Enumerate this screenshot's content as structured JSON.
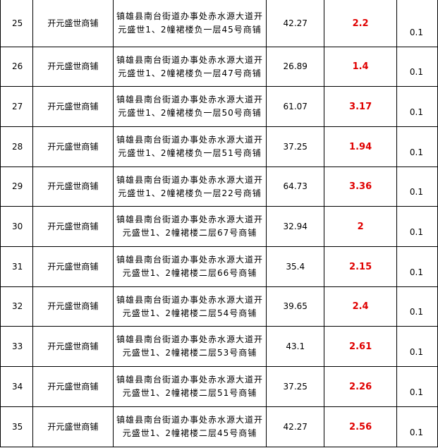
{
  "rows": [
    {
      "no": "25",
      "name": "开元盛世商铺",
      "address": "镇雄县南台街道办事处赤水源大道开元盛世1、2幢裙楼负一层45号商铺",
      "area": "42.27",
      "value": "2.2",
      "rate": "0.1"
    },
    {
      "no": "26",
      "name": "开元盛世商铺",
      "address": "镇雄县南台街道办事处赤水源大道开元盛世1、2幢裙楼负一层47号商铺",
      "area": "26.89",
      "value": "1.4",
      "rate": "0.1"
    },
    {
      "no": "27",
      "name": "开元盛世商铺",
      "address": "镇雄县南台街道办事处赤水源大道开元盛世1、2幢裙楼负一层50号商铺",
      "area": "61.07",
      "value": "3.17",
      "rate": "0.1"
    },
    {
      "no": "28",
      "name": "开元盛世商铺",
      "address": "镇雄县南台街道办事处赤水源大道开元盛世1、2幢裙楼负一层51号商铺",
      "area": "37.25",
      "value": "1.94",
      "rate": "0.1"
    },
    {
      "no": "29",
      "name": "开元盛世商铺",
      "address": "镇雄县南台街道办事处赤水源大道开元盛世1、2幢裙楼负一层22号商铺",
      "area": "64.73",
      "value": "3.36",
      "rate": "0.1"
    },
    {
      "no": "30",
      "name": "开元盛世商铺",
      "address": "镇雄县南台街道办事处赤水源大道开元盛世1、2幢裙楼二层67号商铺",
      "area": "32.94",
      "value": "2",
      "rate": "0.1"
    },
    {
      "no": "31",
      "name": "开元盛世商铺",
      "address": "镇雄县南台街道办事处赤水源大道开元盛世1、2幢裙楼二层66号商铺",
      "area": "35.4",
      "value": "2.15",
      "rate": "0.1"
    },
    {
      "no": "32",
      "name": "开元盛世商铺",
      "address": "镇雄县南台街道办事处赤水源大道开元盛世1、2幢裙楼二层54号商铺",
      "area": "39.65",
      "value": "2.4",
      "rate": "0.1"
    },
    {
      "no": "33",
      "name": "开元盛世商铺",
      "address": "镇雄县南台街道办事处赤水源大道开元盛世1、2幢裙楼二层53号商铺",
      "area": "43.1",
      "value": "2.61",
      "rate": "0.1"
    },
    {
      "no": "34",
      "name": "开元盛世商铺",
      "address": "镇雄县南台街道办事处赤水源大道开元盛世1、2幢裙楼二层51号商铺",
      "area": "37.25",
      "value": "2.26",
      "rate": "0.1"
    },
    {
      "no": "35",
      "name": "开元盛世商铺",
      "address": "镇雄县南台街道办事处赤水源大道开元盛世1、2幢裙楼二层45号商铺",
      "area": "42.27",
      "value": "2.56",
      "rate": "0.1"
    }
  ],
  "colors": {
    "value_text": "#e00000",
    "border": "#000000"
  }
}
